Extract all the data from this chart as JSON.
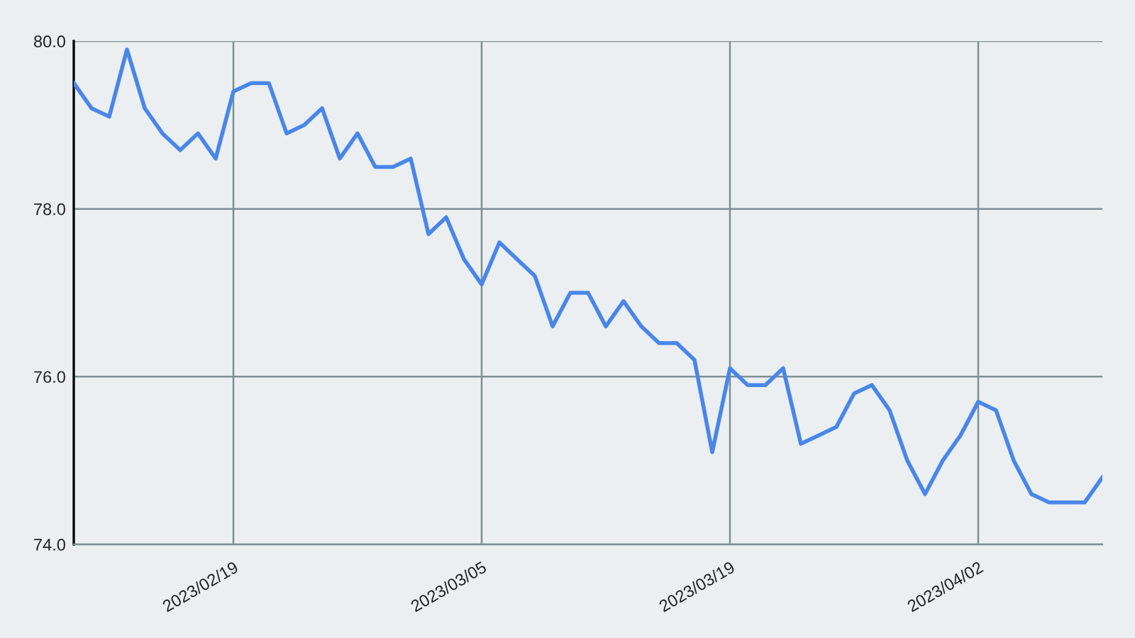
{
  "chart_data": {
    "type": "line",
    "x": [
      "2023-02-10",
      "2023-02-11",
      "2023-02-12",
      "2023-02-13",
      "2023-02-14",
      "2023-02-15",
      "2023-02-16",
      "2023-02-17",
      "2023-02-18",
      "2023-02-19",
      "2023-02-20",
      "2023-02-21",
      "2023-02-22",
      "2023-02-23",
      "2023-02-24",
      "2023-02-25",
      "2023-02-26",
      "2023-02-27",
      "2023-02-28",
      "2023-03-01",
      "2023-03-02",
      "2023-03-03",
      "2023-03-04",
      "2023-03-05",
      "2023-03-06",
      "2023-03-07",
      "2023-03-08",
      "2023-03-09",
      "2023-03-10",
      "2023-03-11",
      "2023-03-12",
      "2023-03-13",
      "2023-03-14",
      "2023-03-15",
      "2023-03-16",
      "2023-03-17",
      "2023-03-18",
      "2023-03-19",
      "2023-03-20",
      "2023-03-21",
      "2023-03-22",
      "2023-03-23",
      "2023-03-24",
      "2023-03-25",
      "2023-03-26",
      "2023-03-27",
      "2023-03-28",
      "2023-03-29",
      "2023-03-30",
      "2023-03-31",
      "2023-04-01",
      "2023-04-02",
      "2023-04-03",
      "2023-04-04",
      "2023-04-05",
      "2023-04-06",
      "2023-04-07",
      "2023-04-08",
      "2023-04-09"
    ],
    "series": [
      {
        "color": "#4a86e8",
        "values": [
          79.5,
          79.2,
          79.1,
          79.9,
          79.2,
          78.9,
          78.7,
          78.9,
          78.6,
          79.4,
          79.5,
          79.5,
          78.9,
          79.0,
          79.2,
          78.6,
          78.9,
          78.5,
          78.5,
          78.6,
          77.7,
          77.9,
          77.4,
          77.1,
          77.6,
          77.4,
          77.2,
          76.6,
          77.0,
          77.0,
          76.6,
          76.9,
          76.6,
          76.4,
          76.4,
          76.2,
          75.1,
          76.1,
          75.9,
          75.9,
          76.1,
          75.2,
          75.3,
          75.4,
          75.8,
          75.9,
          75.6,
          75.0,
          74.6,
          75.0,
          75.3,
          75.7,
          75.6,
          75.0,
          74.6,
          74.5,
          74.5,
          74.5,
          74.8
        ]
      }
    ],
    "xlim": [
      "2023-02-10",
      "2023-04-09"
    ],
    "xticks": [
      {
        "value": "2023-02-19",
        "label": "2023/02/19"
      },
      {
        "value": "2023-03-05",
        "label": "2023/03/05"
      },
      {
        "value": "2023-03-19",
        "label": "2023/03/19"
      },
      {
        "value": "2023-04-02",
        "label": "2023/04/02"
      }
    ],
    "ylim": [
      74,
      80
    ],
    "yticks": [
      {
        "value": 74,
        "label": "74.0"
      },
      {
        "value": 76,
        "label": "76.0"
      },
      {
        "value": 78,
        "label": "78.0"
      },
      {
        "value": 80,
        "label": "80.0"
      }
    ],
    "grid": true,
    "marker": "none",
    "line_style": "solid"
  }
}
